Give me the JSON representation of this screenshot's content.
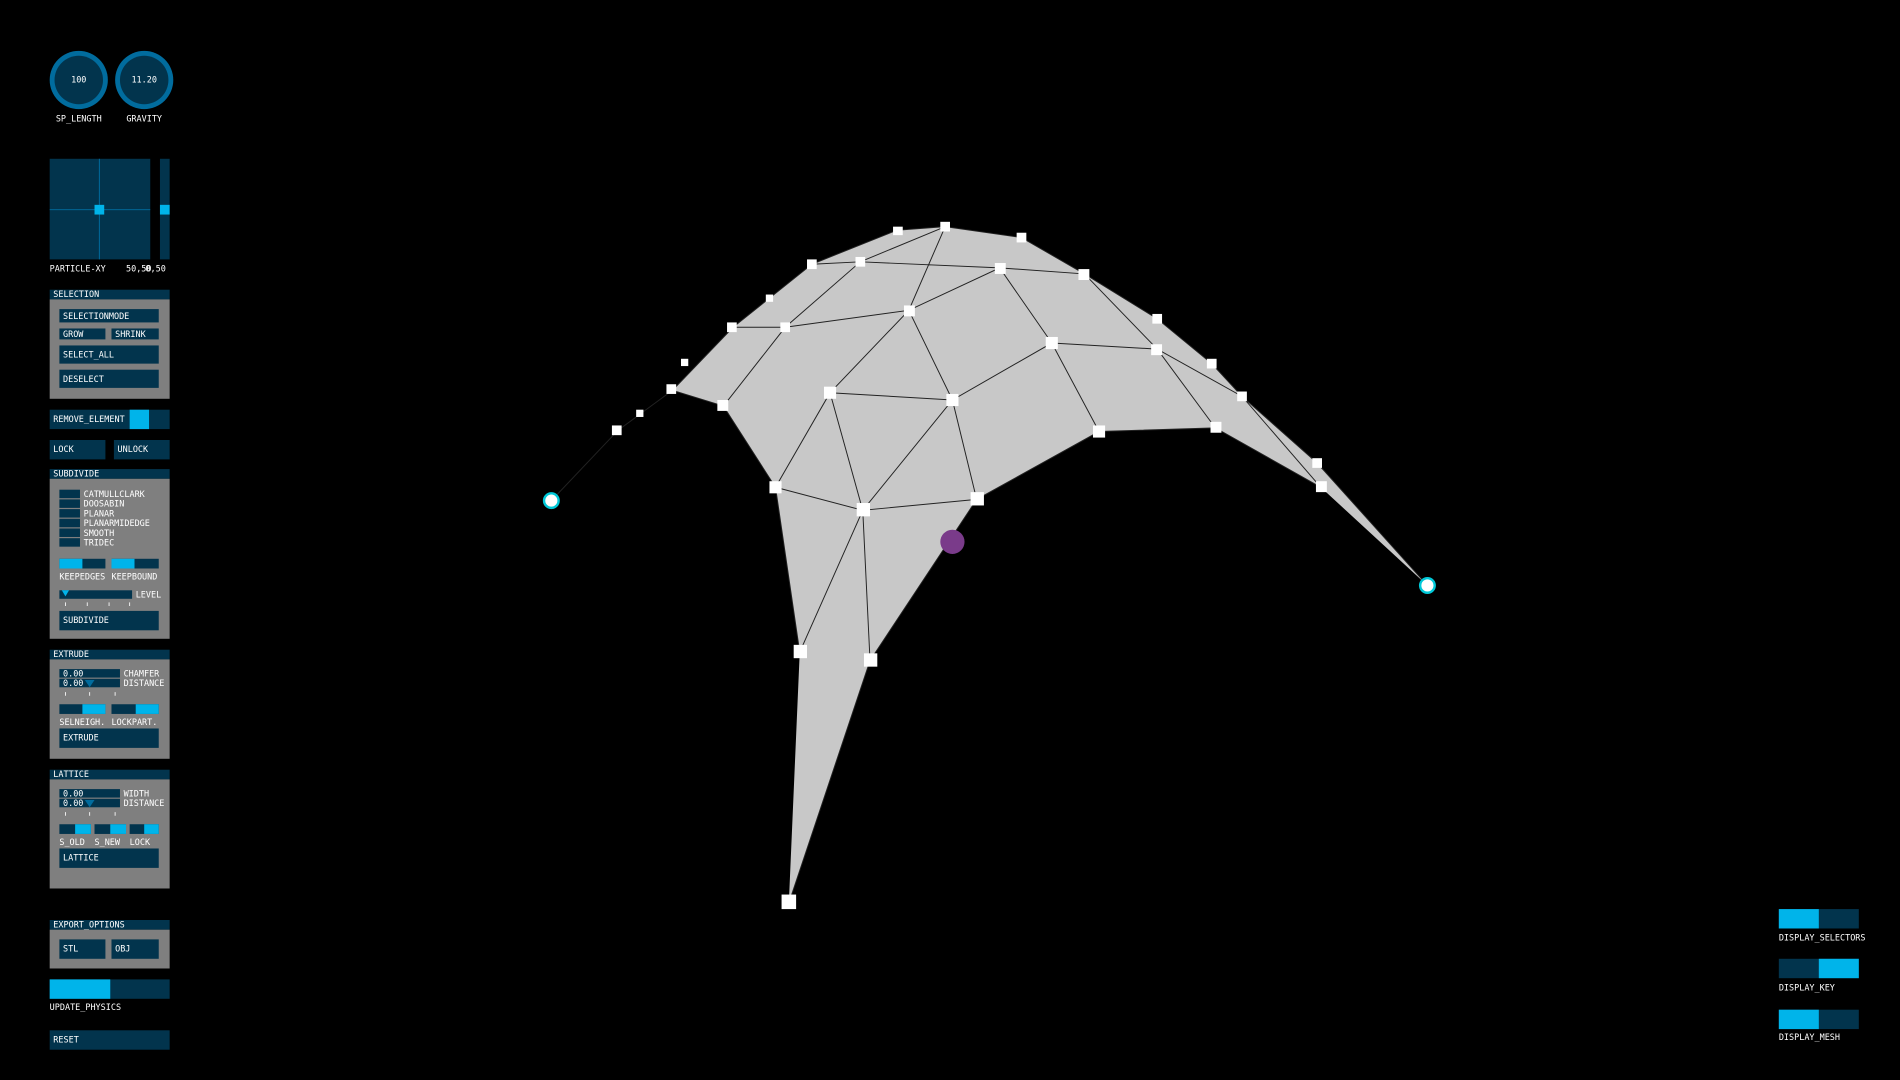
{
  "knobs": [
    {
      "value": "100",
      "label": "SP_LENGTH"
    },
    {
      "value": "11.20",
      "label": "GRAVITY"
    }
  ],
  "slider2d": {
    "label": "PARTICLE-XY",
    "value": "50,50",
    "value2": "0,50"
  },
  "selection": {
    "title": "SELECTION",
    "buttons": [
      "SELECTIONMODE",
      "GROW",
      "SHRINK",
      "SELECT_ALL",
      "DESELECT"
    ]
  },
  "remove_element": "REMOVE_ELEMENT",
  "lock": "LOCK",
  "unlock": "UNLOCK",
  "subdivide": {
    "title": "SUBDIVIDE",
    "options": [
      "CATMULLCLARK",
      "DOOSABIN",
      "PLANAR",
      "PLANARMIDEDGE",
      "SMOOTH",
      "TRIDEC"
    ],
    "toggles": [
      "KEEPEDGES",
      "KEEPBOUND"
    ],
    "slider_label": "LEVEL",
    "button": "SUBDIVIDE"
  },
  "extrude": {
    "title": "EXTRUDE",
    "fields": [
      {
        "value": "0.00",
        "label": "CHAMFER"
      },
      {
        "value": "0.00",
        "label": "DISTANCE"
      }
    ],
    "toggles": [
      "SELNEIGH.",
      "LOCKPART."
    ],
    "button": "EXTRUDE"
  },
  "lattice": {
    "title": "LATTICE",
    "fields": [
      {
        "value": "0.00",
        "label": "WIDTH"
      },
      {
        "value": "0.00",
        "label": "DISTANCE"
      }
    ],
    "toggles": [
      "S_OLD",
      "S_NEW",
      "LOCK"
    ],
    "button": "LATTICE"
  },
  "export": {
    "title": "EXPORT_OPTIONS",
    "buttons": [
      "STL",
      "OBJ"
    ]
  },
  "update_physics": "UPDATE_PHYSICS",
  "reset": "RESET",
  "display": [
    "DISPLAY_SELECTORS",
    "DISPLAY_KEY",
    "DISPLAY_MESH"
  ]
}
